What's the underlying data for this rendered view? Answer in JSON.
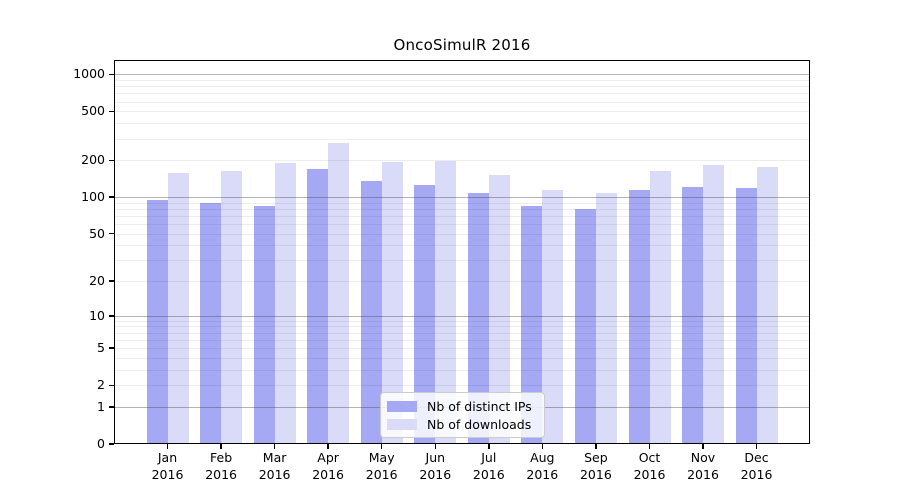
{
  "title": "OncoSimulR 2016",
  "chart_data": {
    "type": "bar",
    "title": "OncoSimulR 2016",
    "categories": [
      "Jan",
      "Feb",
      "Mar",
      "Apr",
      "May",
      "Jun",
      "Jul",
      "Aug",
      "Sep",
      "Oct",
      "Nov",
      "Dec"
    ],
    "category_year": "2016",
    "series": [
      {
        "name": "Nb of distinct IPs",
        "color": "#a5a9f3",
        "values": [
          95,
          90,
          85,
          170,
          136,
          126,
          108,
          85,
          80,
          114,
          121,
          119
        ]
      },
      {
        "name": "Nb of downloads",
        "color": "#d9dbf9",
        "values": [
          158,
          165,
          190,
          277,
          194,
          197,
          152,
          114,
          108,
          163,
          183,
          176
        ]
      }
    ],
    "xlabel": "",
    "ylabel": "",
    "y_ticks": [
      0,
      1,
      2,
      5,
      10,
      20,
      50,
      100,
      200,
      500,
      1000
    ],
    "y_scale": "log1p",
    "ylim": [
      0,
      1310
    ],
    "grid": "horizontal; faint minor lines at log subdivisions, darker lines at 1, 10, 100, 1000",
    "legend_position": "lower center"
  }
}
